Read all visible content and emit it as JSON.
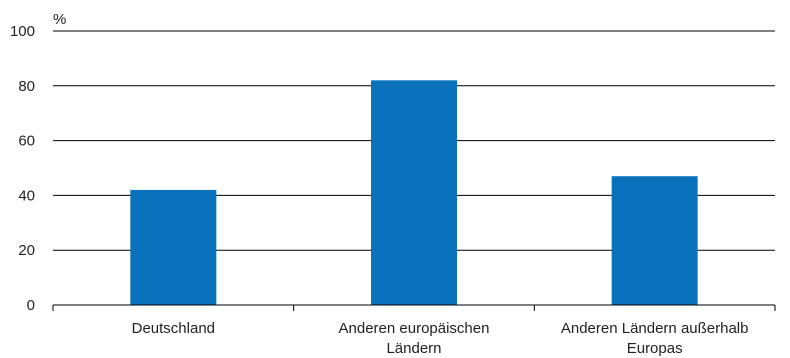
{
  "chart_data": {
    "type": "bar",
    "unit_label": "%",
    "categories": [
      [
        "Deutschland"
      ],
      [
        "Anderen europäischen",
        "Ländern"
      ],
      [
        "Anderen Ländern außerhalb",
        "Europas"
      ]
    ],
    "values": [
      42,
      82,
      47
    ],
    "ylim": [
      0,
      100
    ],
    "yticks": [
      0,
      20,
      40,
      60,
      80,
      100
    ],
    "grid": true,
    "colors": {
      "bar": "#0a71bc",
      "grid": "#000000",
      "text": "#222222"
    }
  }
}
